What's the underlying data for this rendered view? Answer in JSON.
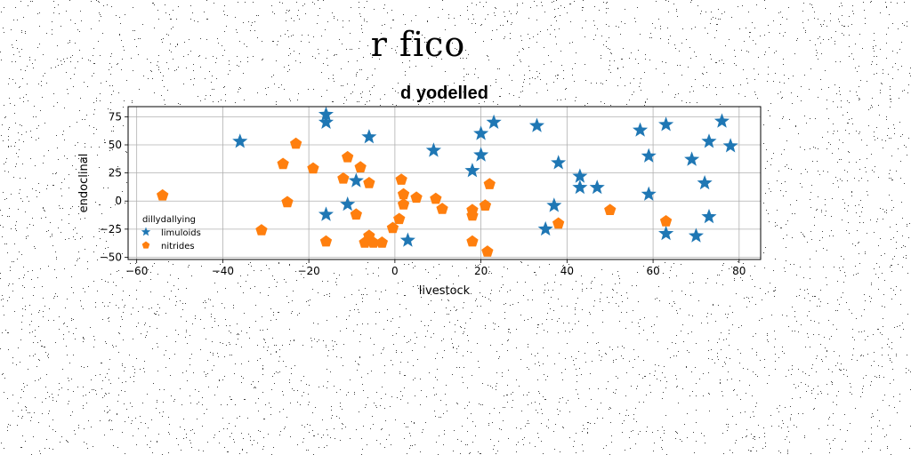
{
  "suptitle": "r fico",
  "chart_data": {
    "type": "scatter",
    "title": "d yodelled",
    "xlabel": "livestock",
    "ylabel": "endoclinal",
    "xlim": [
      -62,
      85
    ],
    "ylim": [
      -52,
      84
    ],
    "xticks": [
      -60,
      -40,
      -20,
      0,
      20,
      40,
      60,
      80
    ],
    "yticks": [
      -50,
      -25,
      0,
      25,
      50,
      75
    ],
    "grid": true,
    "legend": {
      "title": "dillydallying",
      "placement": "center-left"
    },
    "series": [
      {
        "name": "limuloids",
        "marker": "star",
        "color": "#1f77b4",
        "points": [
          [
            -36,
            53
          ],
          [
            -16,
            77
          ],
          [
            -16,
            70
          ],
          [
            -16,
            -12
          ],
          [
            -11,
            -3
          ],
          [
            -9,
            18
          ],
          [
            -6,
            57
          ],
          [
            3,
            -35
          ],
          [
            9,
            45
          ],
          [
            18,
            27
          ],
          [
            20,
            60
          ],
          [
            20,
            41
          ],
          [
            23,
            70
          ],
          [
            33,
            67
          ],
          [
            35,
            -25
          ],
          [
            37,
            -4
          ],
          [
            38,
            34
          ],
          [
            43,
            22
          ],
          [
            43,
            12
          ],
          [
            47,
            12
          ],
          [
            57,
            63
          ],
          [
            59,
            40
          ],
          [
            59,
            6
          ],
          [
            63,
            68
          ],
          [
            63,
            -29
          ],
          [
            69,
            37
          ],
          [
            70,
            -31
          ],
          [
            72,
            16
          ],
          [
            73,
            53
          ],
          [
            73,
            -14
          ],
          [
            76,
            71
          ],
          [
            78,
            49
          ]
        ]
      },
      {
        "name": "nitrides",
        "marker": "pentagon",
        "color": "#ff7f0e",
        "points": [
          [
            -54,
            5
          ],
          [
            -31,
            -26
          ],
          [
            -26,
            33
          ],
          [
            -25,
            -1
          ],
          [
            -23,
            51
          ],
          [
            -19,
            29
          ],
          [
            -16,
            -36
          ],
          [
            -12,
            20
          ],
          [
            -11,
            39
          ],
          [
            -9,
            -12
          ],
          [
            -8,
            30
          ],
          [
            -7,
            -37
          ],
          [
            -6,
            -31
          ],
          [
            -6,
            16
          ],
          [
            -5,
            -37
          ],
          [
            -3,
            -37
          ],
          [
            -0.5,
            -24
          ],
          [
            1,
            -16
          ],
          [
            1.5,
            19
          ],
          [
            2,
            6
          ],
          [
            2,
            -3
          ],
          [
            5,
            3
          ],
          [
            9.5,
            2
          ],
          [
            11,
            -7
          ],
          [
            18,
            -36
          ],
          [
            18,
            -13
          ],
          [
            18,
            -8
          ],
          [
            21,
            -4
          ],
          [
            21.5,
            -45
          ],
          [
            22,
            15
          ],
          [
            38,
            -20
          ],
          [
            50,
            -8
          ],
          [
            63,
            -18
          ]
        ]
      }
    ]
  }
}
